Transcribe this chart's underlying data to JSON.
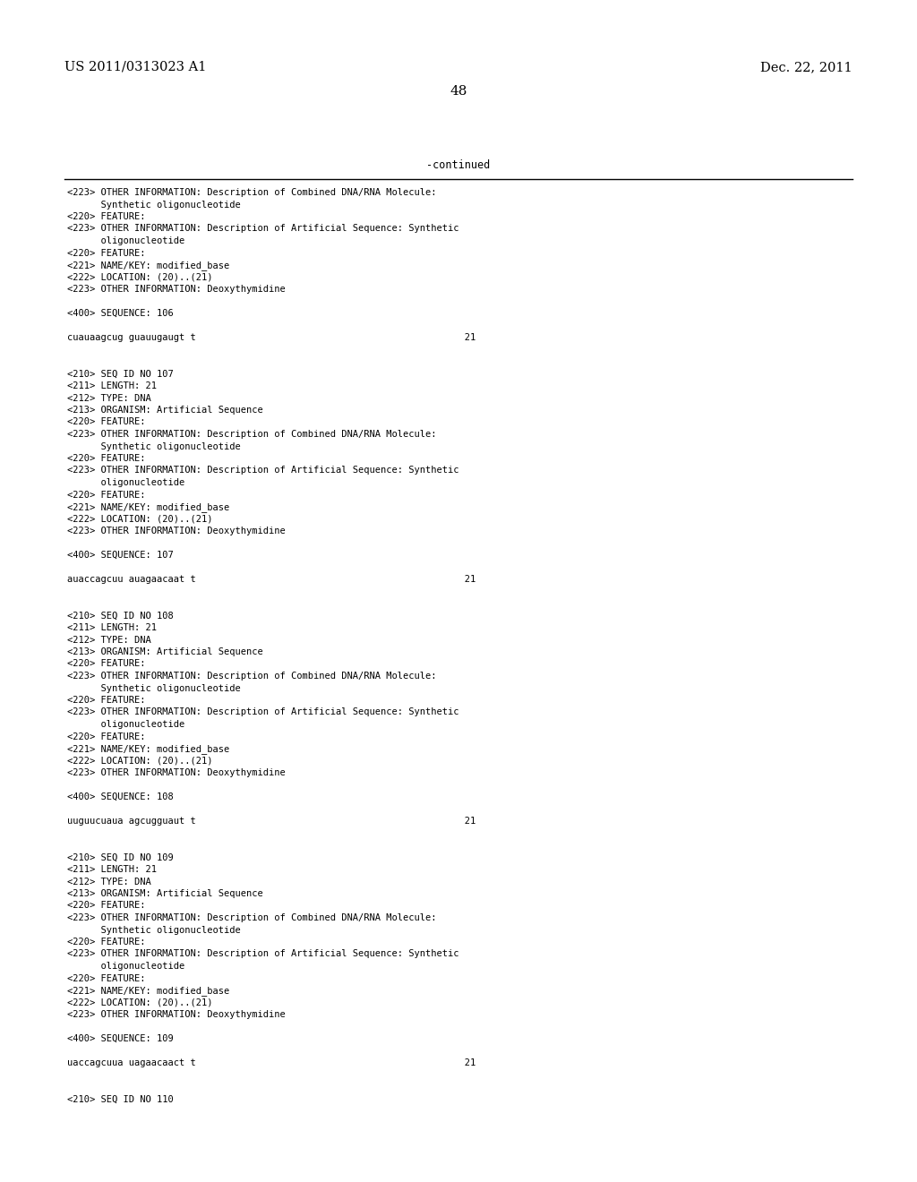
{
  "header_left": "US 2011/0313023 A1",
  "header_right": "Dec. 22, 2011",
  "page_number": "48",
  "continued_label": "-continued",
  "bg_color": "#ffffff",
  "text_color": "#000000",
  "body_lines": [
    "<223> OTHER INFORMATION: Description of Combined DNA/RNA Molecule:",
    "      Synthetic oligonucleotide",
    "<220> FEATURE:",
    "<223> OTHER INFORMATION: Description of Artificial Sequence: Synthetic",
    "      oligonucleotide",
    "<220> FEATURE:",
    "<221> NAME/KEY: modified_base",
    "<222> LOCATION: (20)..(21)",
    "<223> OTHER INFORMATION: Deoxythymidine",
    "",
    "<400> SEQUENCE: 106",
    "",
    "cuauaagcug guauugaugt t                                                21",
    "",
    "",
    "<210> SEQ ID NO 107",
    "<211> LENGTH: 21",
    "<212> TYPE: DNA",
    "<213> ORGANISM: Artificial Sequence",
    "<220> FEATURE:",
    "<223> OTHER INFORMATION: Description of Combined DNA/RNA Molecule:",
    "      Synthetic oligonucleotide",
    "<220> FEATURE:",
    "<223> OTHER INFORMATION: Description of Artificial Sequence: Synthetic",
    "      oligonucleotide",
    "<220> FEATURE:",
    "<221> NAME/KEY: modified_base",
    "<222> LOCATION: (20)..(21)",
    "<223> OTHER INFORMATION: Deoxythymidine",
    "",
    "<400> SEQUENCE: 107",
    "",
    "auaccagcuu auagaacaat t                                                21",
    "",
    "",
    "<210> SEQ ID NO 108",
    "<211> LENGTH: 21",
    "<212> TYPE: DNA",
    "<213> ORGANISM: Artificial Sequence",
    "<220> FEATURE:",
    "<223> OTHER INFORMATION: Description of Combined DNA/RNA Molecule:",
    "      Synthetic oligonucleotide",
    "<220> FEATURE:",
    "<223> OTHER INFORMATION: Description of Artificial Sequence: Synthetic",
    "      oligonucleotide",
    "<220> FEATURE:",
    "<221> NAME/KEY: modified_base",
    "<222> LOCATION: (20)..(21)",
    "<223> OTHER INFORMATION: Deoxythymidine",
    "",
    "<400> SEQUENCE: 108",
    "",
    "uuguucuaua agcugguaut t                                                21",
    "",
    "",
    "<210> SEQ ID NO 109",
    "<211> LENGTH: 21",
    "<212> TYPE: DNA",
    "<213> ORGANISM: Artificial Sequence",
    "<220> FEATURE:",
    "<223> OTHER INFORMATION: Description of Combined DNA/RNA Molecule:",
    "      Synthetic oligonucleotide",
    "<220> FEATURE:",
    "<223> OTHER INFORMATION: Description of Artificial Sequence: Synthetic",
    "      oligonucleotide",
    "<220> FEATURE:",
    "<221> NAME/KEY: modified_base",
    "<222> LOCATION: (20)..(21)",
    "<223> OTHER INFORMATION: Deoxythymidine",
    "",
    "<400> SEQUENCE: 109",
    "",
    "uaccagcuua uagaacaact t                                                21",
    "",
    "",
    "<210> SEQ ID NO 110"
  ]
}
